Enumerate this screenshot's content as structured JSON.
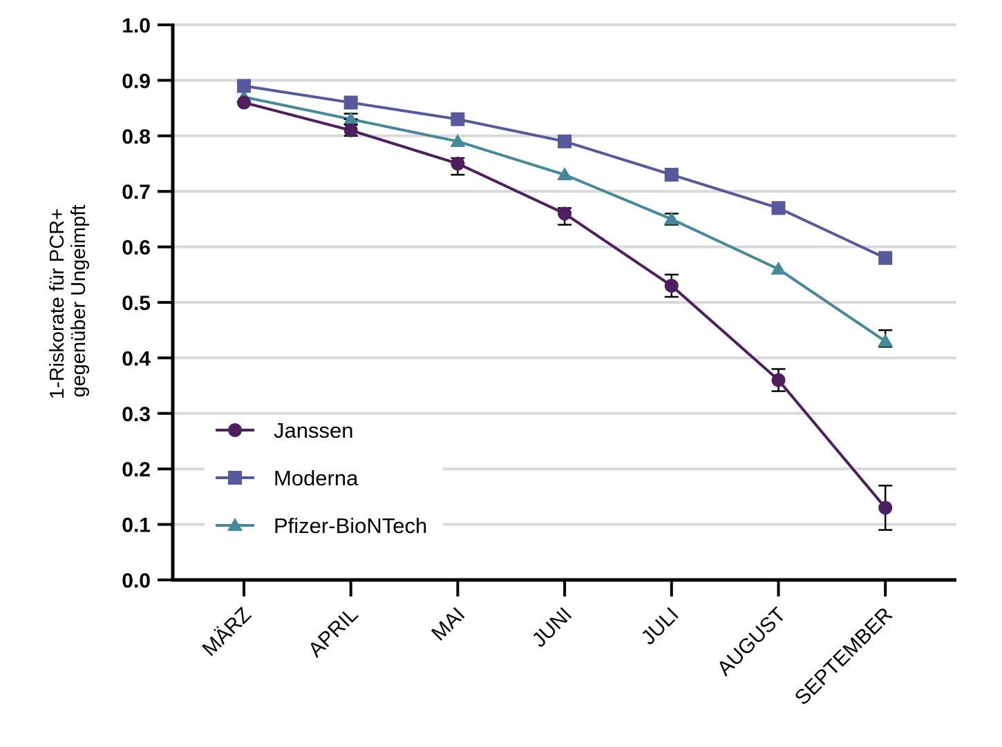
{
  "chart_data": {
    "type": "line",
    "title": "",
    "xlabel": "",
    "ylabel_lines": [
      "1-Riskorate für PCR+",
      "gegenüber Ungeimpft"
    ],
    "categories": [
      "MÄRZ",
      "APRIL",
      "MAI",
      "JUNI",
      "JULI",
      "AUGUST",
      "SEPTEMBER"
    ],
    "ylim": [
      0.0,
      1.0
    ],
    "yticks": [
      "0.0",
      "0.1",
      "0.2",
      "0.3",
      "0.4",
      "0.5",
      "0.6",
      "0.7",
      "0.8",
      "0.9",
      "1.0"
    ],
    "grid": "horizontal",
    "legend_position": "bottom-left",
    "series": [
      {
        "name": "Janssen",
        "marker": "circle",
        "color": "#4e1f5e",
        "values": [
          0.86,
          0.81,
          0.75,
          0.66,
          0.53,
          0.36,
          0.13
        ],
        "error_low": [
          0.86,
          0.8,
          0.73,
          0.64,
          0.51,
          0.34,
          0.09
        ],
        "error_high": [
          0.86,
          0.82,
          0.76,
          0.67,
          0.55,
          0.38,
          0.17
        ]
      },
      {
        "name": "Moderna",
        "marker": "square",
        "color": "#56599b",
        "values": [
          0.89,
          0.86,
          0.83,
          0.79,
          0.73,
          0.67,
          0.58
        ],
        "error_low": [
          0.89,
          0.86,
          0.83,
          0.79,
          0.73,
          0.67,
          0.58
        ],
        "error_high": [
          0.89,
          0.86,
          0.83,
          0.79,
          0.73,
          0.67,
          0.58
        ]
      },
      {
        "name": "Pfizer-BioNTech",
        "marker": "triangle",
        "color": "#45899a",
        "values": [
          0.87,
          0.83,
          0.79,
          0.73,
          0.65,
          0.56,
          0.43
        ],
        "error_low": [
          0.87,
          0.83,
          0.79,
          0.73,
          0.64,
          0.56,
          0.42
        ],
        "error_high": [
          0.87,
          0.84,
          0.79,
          0.73,
          0.66,
          0.56,
          0.45
        ]
      }
    ]
  }
}
